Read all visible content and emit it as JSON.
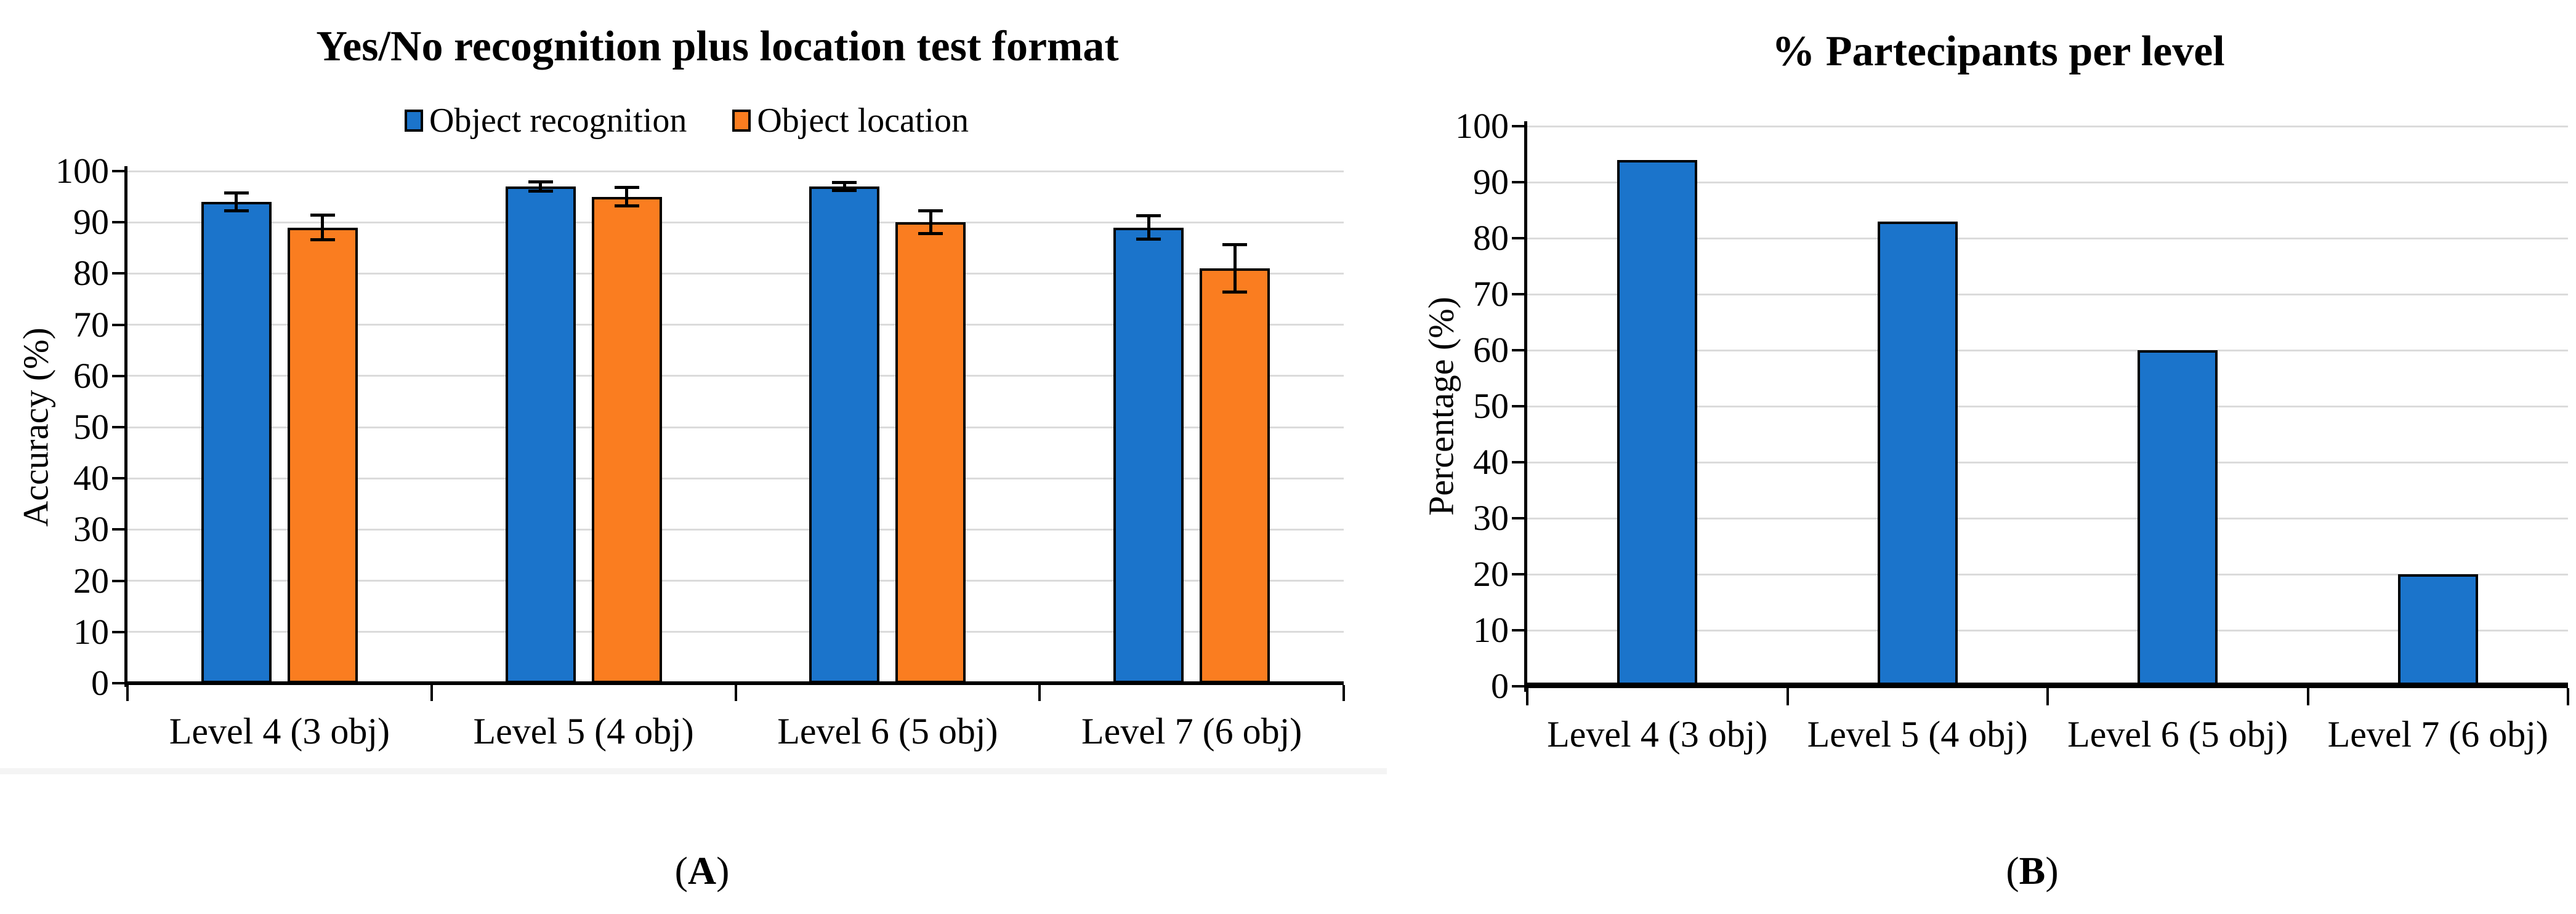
{
  "figure": {
    "panels": [
      {
        "caption_open": "(",
        "caption_letter": "A",
        "caption_close": ")"
      },
      {
        "caption_open": "(",
        "caption_letter": "B",
        "caption_close": ")"
      }
    ]
  },
  "chart_data": [
    {
      "type": "bar",
      "title": "Yes/No recognition plus location test format",
      "ylabel": "Accuracy (%)",
      "categories": [
        "Level 4 (3 obj)",
        "Level 5 (4 obj)",
        "Level 6 (5 obj)",
        "Level 7 (6 obj)"
      ],
      "series": [
        {
          "name": "Object recognition",
          "color": "#1B74CB",
          "values": [
            94,
            97,
            97,
            89
          ],
          "errors": [
            1.8,
            1.0,
            0.8,
            2.4
          ]
        },
        {
          "name": "Object location",
          "color": "#FA7D20",
          "values": [
            89,
            95,
            90,
            81
          ],
          "errors": [
            2.5,
            1.9,
            2.3,
            4.7
          ]
        }
      ],
      "ylim": [
        0,
        100
      ],
      "ytick_step": 10,
      "grid": true,
      "legend_position": "top",
      "bar_edge_color": "#000000",
      "error_bar_color": "#000000",
      "gridline_color": "#DBDBDB"
    },
    {
      "type": "bar",
      "title": "% Partecipants per level",
      "ylabel": "Percentage (%)",
      "categories": [
        "Level 4 (3 obj)",
        "Level 5 (4 obj)",
        "Level 6 (5 obj)",
        "Level 7 (6 obj)"
      ],
      "series": [
        {
          "color": "#1B74CB",
          "values": [
            94,
            83,
            60,
            20
          ]
        }
      ],
      "ylim": [
        0,
        100
      ],
      "ytick_step": 10,
      "grid": true,
      "legend_position": "none",
      "bar_edge_color": "#000000",
      "gridline_color": "#DBDBDB"
    }
  ]
}
